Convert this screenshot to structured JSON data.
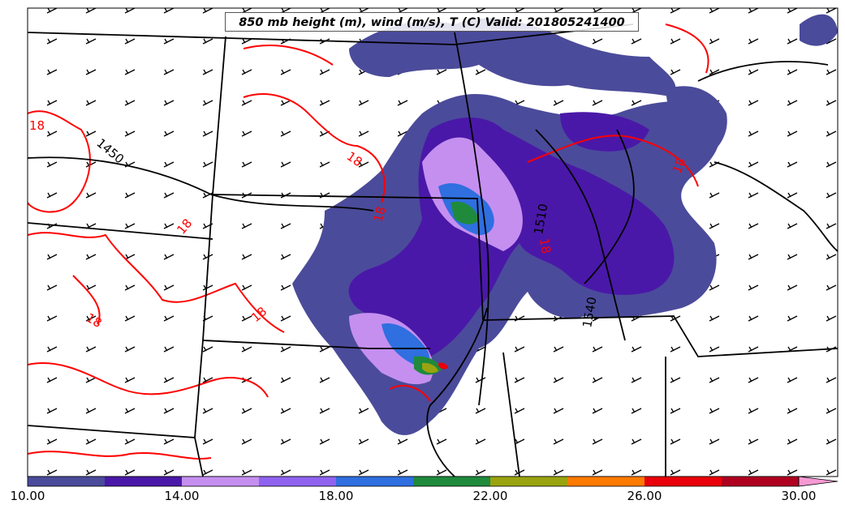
{
  "title": "850 mb height (m), wind (m/s), T (C) Valid: 201805241400",
  "colorbar": {
    "tick_labels": [
      "10.00",
      "14.00",
      "18.00",
      "22.00",
      "26.00",
      "30.00"
    ],
    "colors": [
      "#4b4b9b",
      "#4a18a8",
      "#c58ff0",
      "#8f62f0",
      "#2f6fe0",
      "#1f8a3c",
      "#9aa310",
      "#ff7a00",
      "#e8000a",
      "#b00020",
      "#f040a0"
    ],
    "extend_color": "#f59ad3"
  },
  "contour_labels": {
    "height": [
      "1450",
      "1510",
      "1540"
    ],
    "temperature": [
      "18",
      "18",
      "18",
      "18",
      "18",
      "18",
      "18",
      "18",
      "18",
      "18"
    ]
  },
  "contour_colors": {
    "temperature": "#ff0000",
    "height": "#000000"
  }
}
